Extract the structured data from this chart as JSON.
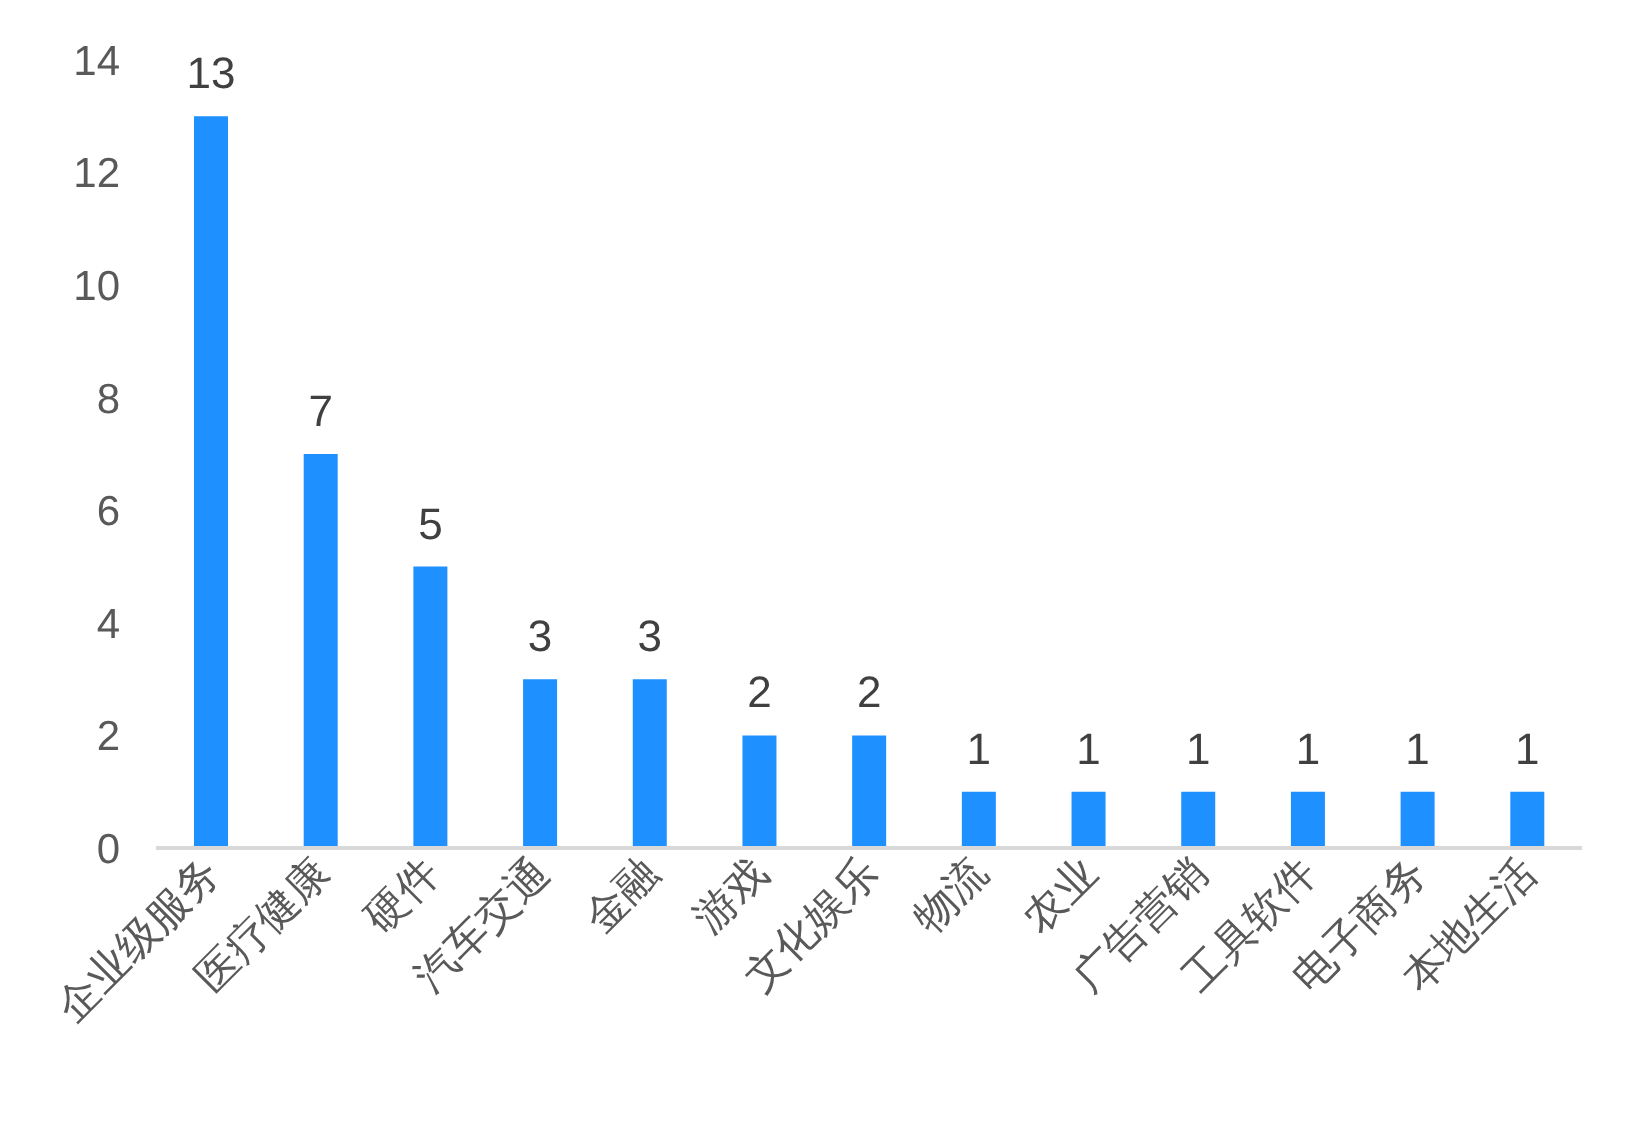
{
  "chart_data": {
    "type": "bar",
    "categories": [
      "企业级服务",
      "医疗健康",
      "硬件",
      "汽车交通",
      "金融",
      "游戏",
      "文化娱乐",
      "物流",
      "农业",
      "广告营销",
      "工具软件",
      "电子商务",
      "本地生活"
    ],
    "values": [
      13,
      7,
      5,
      3,
      3,
      2,
      2,
      1,
      1,
      1,
      1,
      1,
      1
    ],
    "color": "#1e90ff",
    "ylim": [
      0,
      14
    ],
    "yticks": [
      0,
      2,
      4,
      6,
      8,
      10,
      12,
      14
    ],
    "grid": false,
    "data_labels": true
  }
}
